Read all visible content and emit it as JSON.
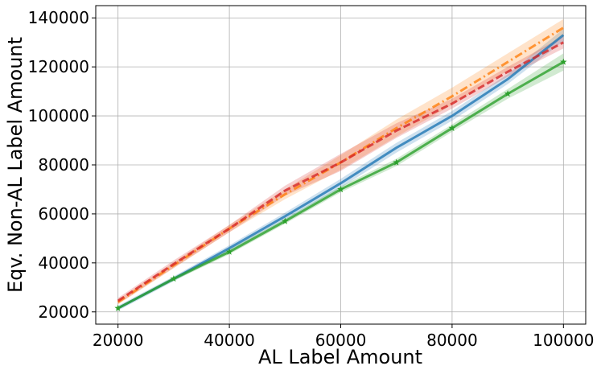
{
  "chart_data": {
    "type": "line",
    "title": "",
    "xlabel": "AL Label Amount",
    "ylabel": "Eqv. Non-AL Label Amount",
    "xlim": [
      16000,
      104000
    ],
    "ylim": [
      15000,
      145000
    ],
    "xticks": [
      20000,
      40000,
      60000,
      80000,
      100000
    ],
    "yticks": [
      20000,
      40000,
      60000,
      80000,
      100000,
      120000,
      140000
    ],
    "grid": true,
    "series": [
      {
        "color": "#1f77b4",
        "style": "solid",
        "marker": "none",
        "x": [
          20000,
          30000,
          40000,
          50000,
          60000,
          70000,
          80000,
          90000,
          100000
        ],
        "y": [
          21500,
          33500,
          46000,
          59000,
          72500,
          87000,
          100000,
          115000,
          133000
        ],
        "band": [
          1000,
          1000,
          1200,
          1500,
          1800,
          2000,
          2000,
          2000,
          2500
        ]
      },
      {
        "color": "#ff7f0e",
        "style": "dashdot",
        "marker": "none",
        "x": [
          20000,
          30000,
          40000,
          50000,
          60000,
          70000,
          80000,
          90000,
          100000
        ],
        "y": [
          24000,
          39000,
          54000,
          68000,
          81000,
          95000,
          108000,
          122000,
          136000
        ],
        "band": [
          1000,
          1200,
          1500,
          2000,
          3000,
          3500,
          3500,
          3500,
          3500
        ]
      },
      {
        "color": "#d62728",
        "style": "dashed",
        "marker": "none",
        "x": [
          20000,
          30000,
          40000,
          50000,
          60000,
          70000,
          80000,
          90000,
          100000
        ],
        "y": [
          24500,
          39500,
          54000,
          69500,
          81000,
          94000,
          105000,
          118000,
          130000
        ],
        "band": [
          1200,
          1500,
          1500,
          2000,
          3500,
          3000,
          2000,
          2000,
          2500
        ]
      },
      {
        "color": "#2ca02c",
        "style": "solid",
        "marker": "star",
        "x": [
          20000,
          30000,
          40000,
          50000,
          60000,
          70000,
          80000,
          90000,
          100000
        ],
        "y": [
          21500,
          33500,
          44500,
          57000,
          70000,
          81000,
          95000,
          109000,
          122000
        ],
        "band": [
          500,
          800,
          1000,
          1000,
          1200,
          1500,
          1500,
          2000,
          3500
        ]
      }
    ]
  }
}
